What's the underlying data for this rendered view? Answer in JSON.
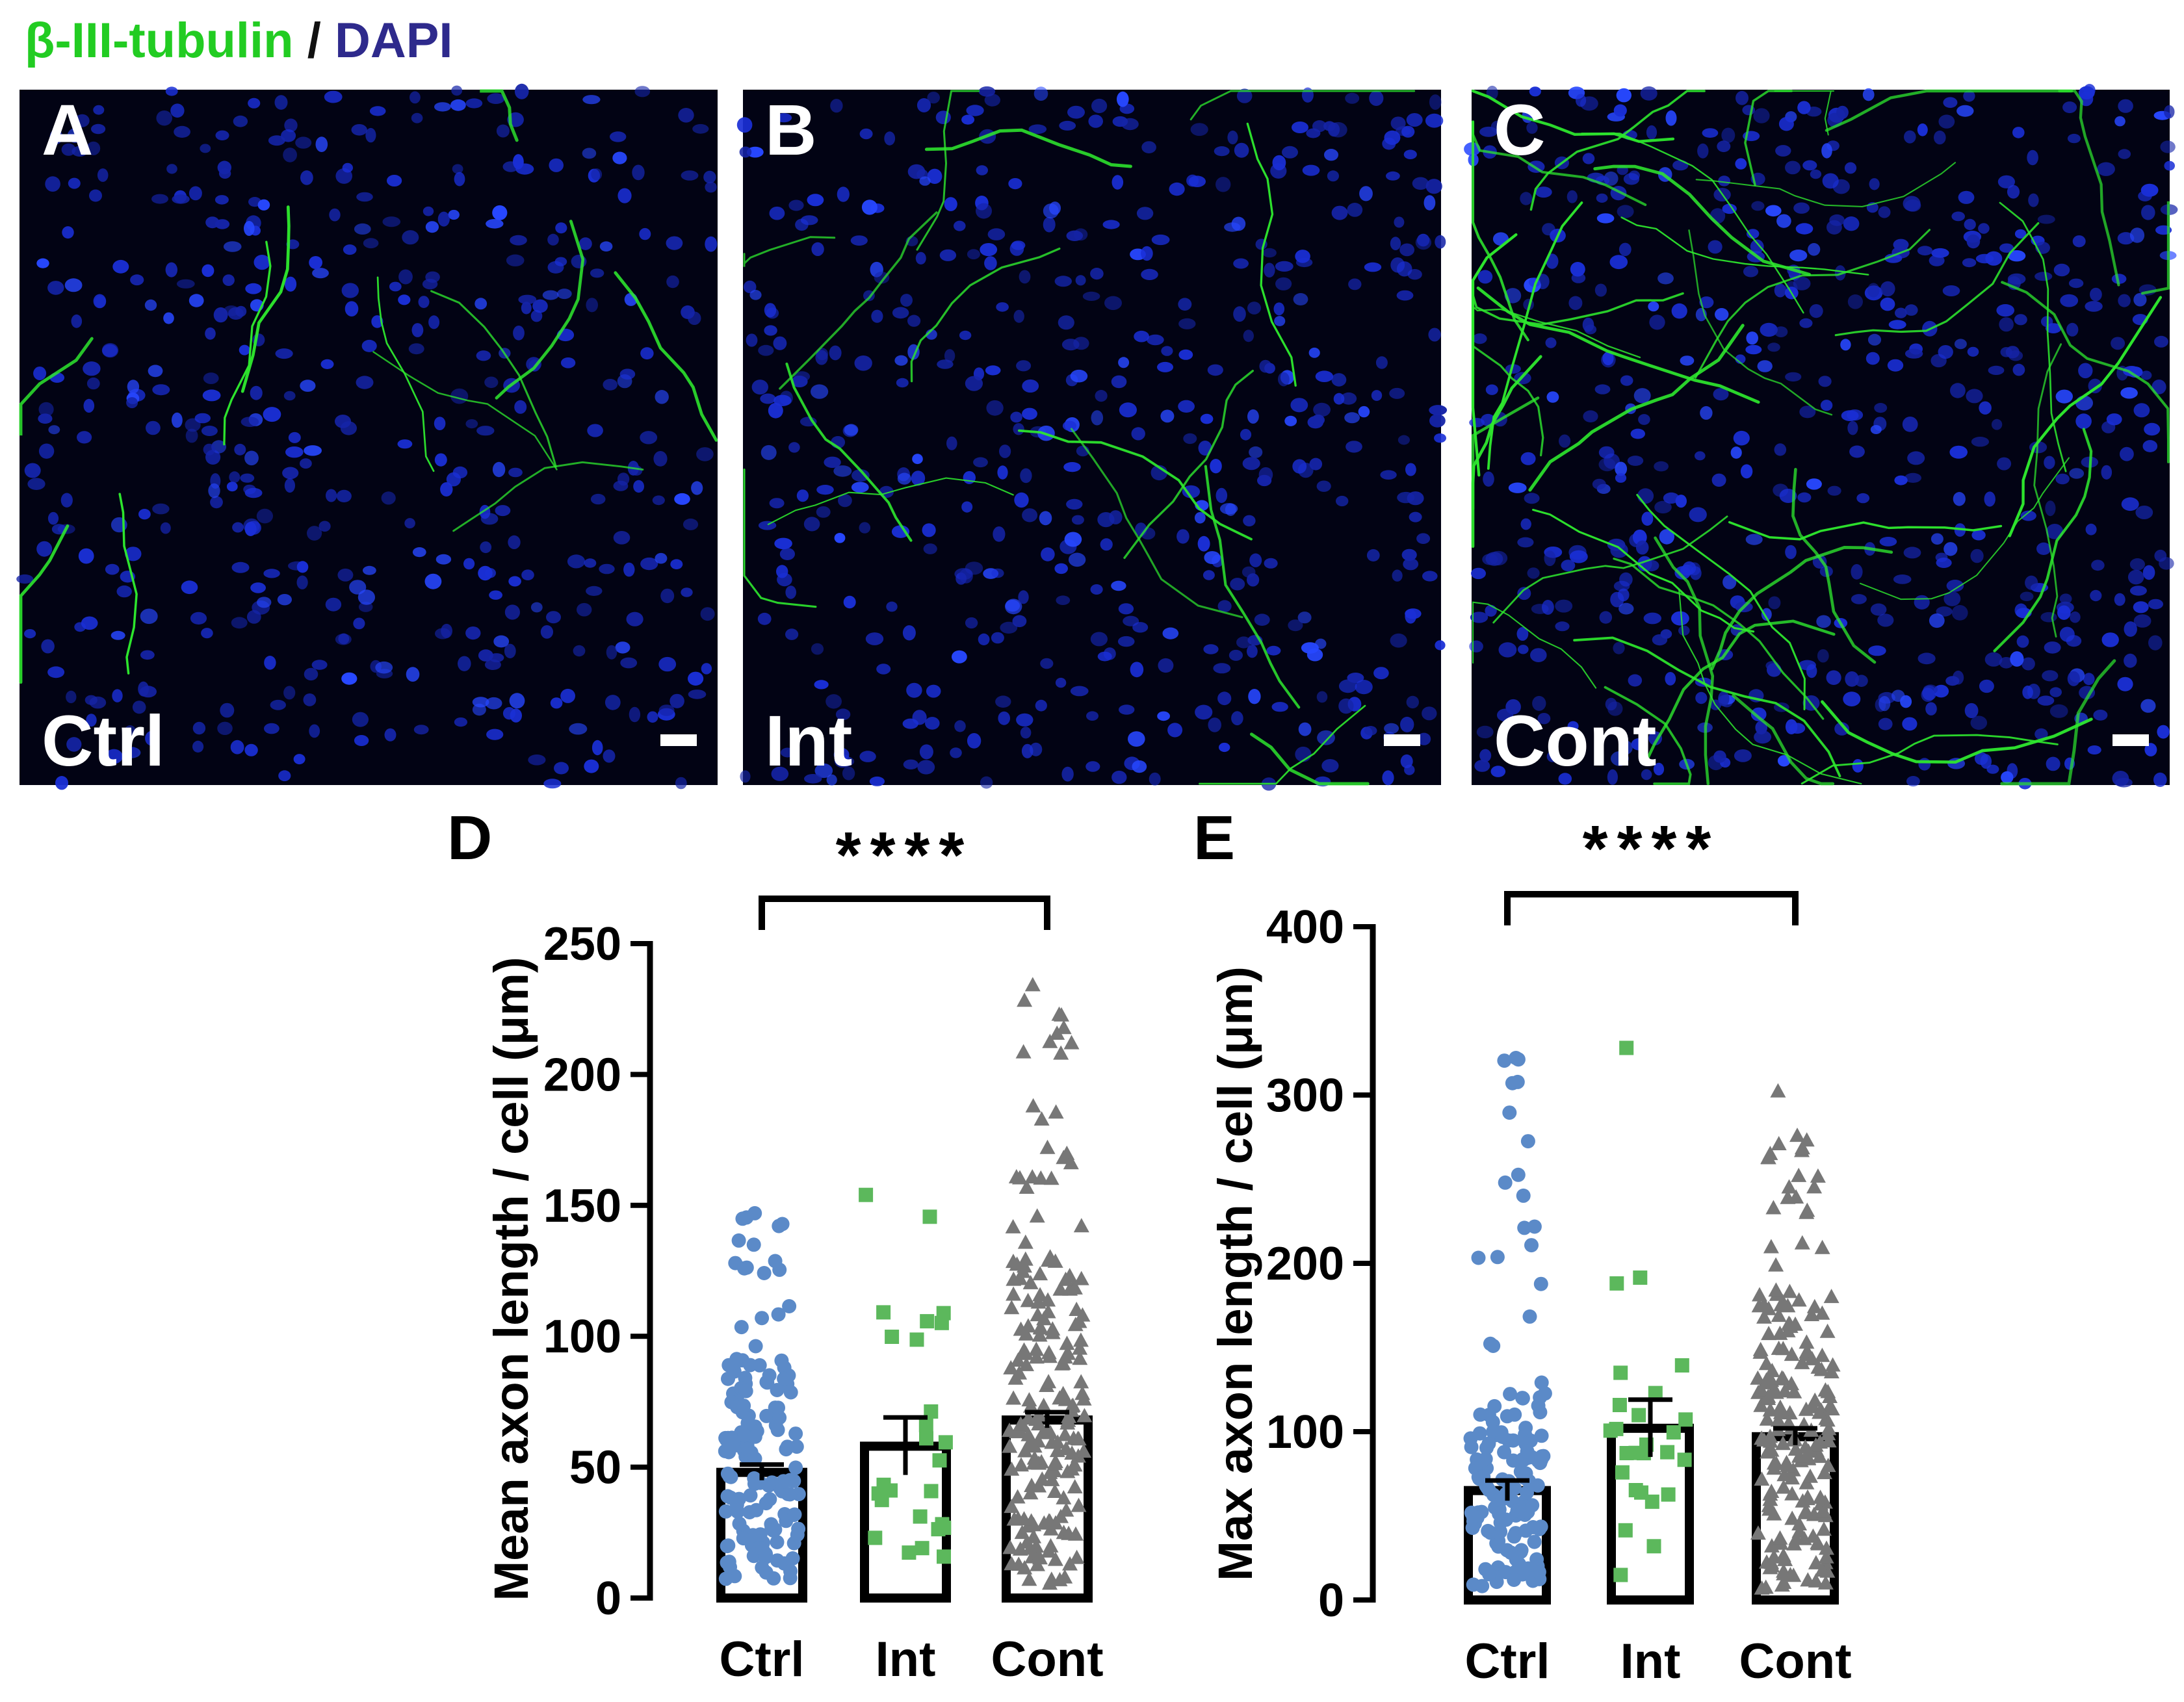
{
  "header": {
    "stain_green": "β-III-tubulin",
    "separator": " / ",
    "stain_blue": "DAPI",
    "green_color": "#22cc22",
    "blue_color": "#2e2a8c"
  },
  "micrographs": [
    {
      "panel": "A",
      "label": "Ctrl",
      "density": "low"
    },
    {
      "panel": "B",
      "label": "Int",
      "density": "medium"
    },
    {
      "panel": "C",
      "label": "Cont",
      "density": "high"
    }
  ],
  "colors": {
    "ctrl": "#5b8ac8",
    "int": "#5cb85c",
    "cont": "#777777",
    "nuclei": "#1a2fd6",
    "axons": "#2ee82e"
  },
  "chart_data": [
    {
      "panel": "D",
      "type": "bar",
      "subtype": "bar_with_scatter_points_mean_sem",
      "ylabel": "Mean axon length / cell (μm)",
      "ylim": [
        0,
        250
      ],
      "yticks": [
        0,
        50,
        100,
        150,
        200,
        250
      ],
      "categories": [
        "Ctrl",
        "Int",
        "Cont"
      ],
      "values": [
        48,
        58,
        68
      ],
      "sem": [
        3,
        11,
        3
      ],
      "n_points": [
        150,
        26,
        200
      ],
      "point_max": [
        147,
        154,
        234
      ],
      "point_min": [
        7,
        10,
        5
      ],
      "significance": {
        "from": "Ctrl",
        "to": "Cont",
        "label": "****"
      }
    },
    {
      "panel": "E",
      "type": "bar",
      "subtype": "bar_with_scatter_points_mean_sem",
      "ylabel": "Max axon length / cell (μm)",
      "ylim": [
        0,
        400
      ],
      "yticks": [
        0,
        100,
        200,
        300,
        400
      ],
      "categories": [
        "Ctrl",
        "Int",
        "Cont"
      ],
      "values": [
        65,
        102,
        97
      ],
      "sem": [
        6,
        17,
        5
      ],
      "n_points": [
        150,
        26,
        200
      ],
      "point_max": [
        322,
        328,
        302
      ],
      "point_min": [
        8,
        12,
        5
      ],
      "significance": {
        "from": "Ctrl",
        "to": "Cont",
        "label": "****"
      }
    }
  ]
}
